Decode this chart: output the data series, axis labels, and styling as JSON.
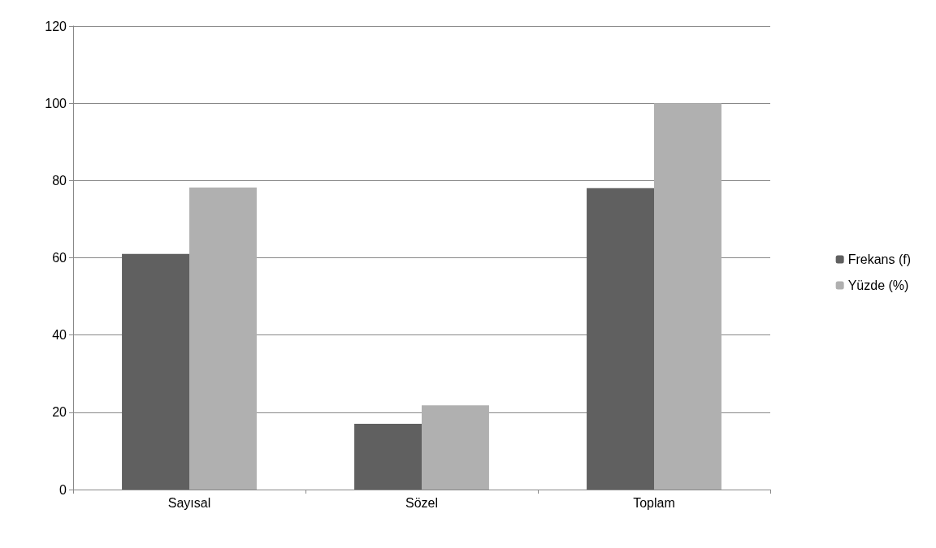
{
  "chart_data": {
    "type": "bar",
    "categories": [
      "Sayısal",
      "Sözel",
      "Toplam"
    ],
    "series": [
      {
        "name": "Frekans (f)",
        "color": "#606060",
        "values": [
          61,
          17,
          78
        ]
      },
      {
        "name": "Yüzde (%)",
        "color": "#b0b0b0",
        "values": [
          78.2,
          21.8,
          100
        ]
      }
    ],
    "ylim": [
      0,
      120
    ],
    "yticks": [
      0,
      20,
      40,
      60,
      80,
      100,
      120
    ],
    "grid": "y",
    "legend": "right"
  }
}
